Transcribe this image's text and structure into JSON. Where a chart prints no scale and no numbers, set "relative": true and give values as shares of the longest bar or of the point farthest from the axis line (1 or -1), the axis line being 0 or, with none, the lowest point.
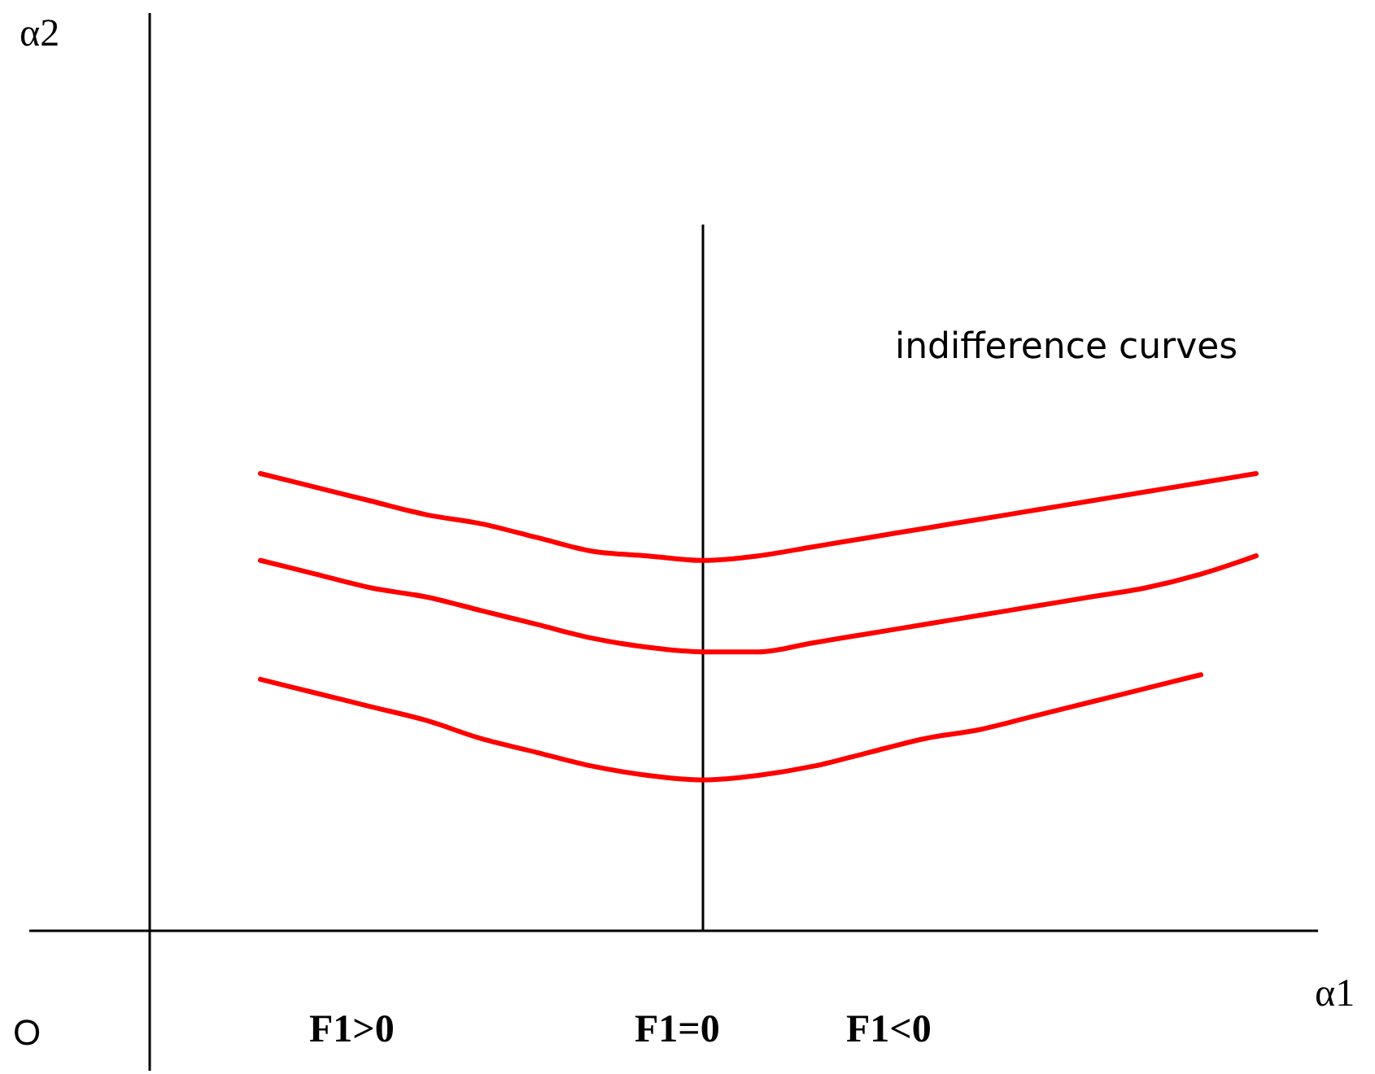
{
  "chart_data": {
    "type": "line",
    "relative": true,
    "categories": [
      null,
      null,
      null,
      null,
      null,
      null,
      null,
      null,
      null,
      null,
      null,
      null,
      null,
      null,
      null,
      null,
      null,
      null,
      null,
      null,
      null,
      null
    ],
    "series": [
      {
        "color": "#ff0000",
        "values": [
          null,
          null,
          1.0,
          0.97,
          0.94,
          0.91,
          0.89,
          0.86,
          0.83,
          0.82,
          0.81,
          0.82,
          0.84,
          0.86,
          0.88,
          0.9,
          0.92,
          0.94,
          0.96,
          0.98,
          1.0,
          null
        ]
      },
      {
        "color": "#ff0000",
        "values": [
          null,
          null,
          0.81,
          0.78,
          0.75,
          0.73,
          0.7,
          0.67,
          0.64,
          0.62,
          0.61,
          0.61,
          0.63,
          0.65,
          0.67,
          0.69,
          0.71,
          0.73,
          0.75,
          0.78,
          0.82,
          null
        ]
      },
      {
        "color": "#ff0000",
        "values": [
          null,
          null,
          0.55,
          0.52,
          0.49,
          0.46,
          0.42,
          0.39,
          0.36,
          0.34,
          0.33,
          0.34,
          0.36,
          0.39,
          0.42,
          0.44,
          0.47,
          0.5,
          0.53,
          0.56,
          null,
          null
        ]
      }
    ],
    "annotations": [
      "α2",
      "α1",
      "O",
      "indifference curves",
      "F1>0",
      "F1=0",
      "F1<0"
    ],
    "marker": "none",
    "line_style": "solid"
  }
}
